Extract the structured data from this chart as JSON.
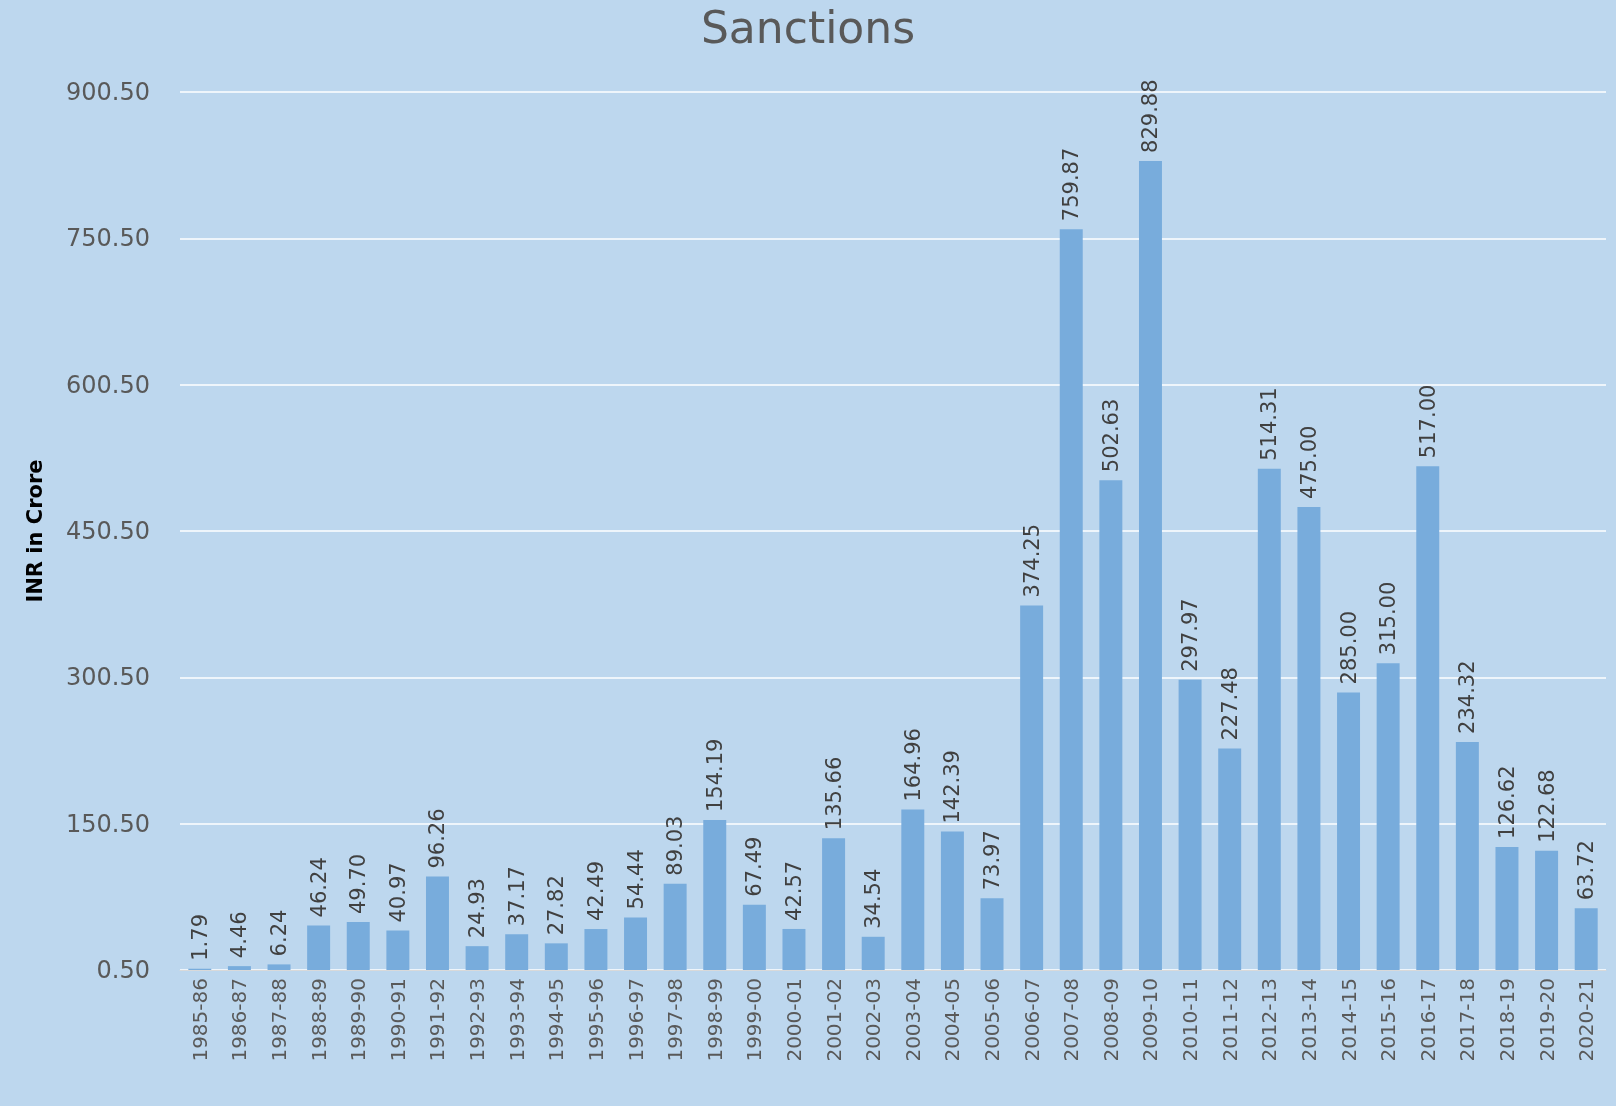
{
  "chart_data": {
    "type": "bar",
    "title": "Sanctions",
    "ylabel": "INR in Crore",
    "categories": [
      "1985-86",
      "1986-87",
      "1987-88",
      "1988-89",
      "1989-90",
      "1990-91",
      "1991-92",
      "1992-93",
      "1993-94",
      "1994-95",
      "1995-96",
      "1996-97",
      "1997-98",
      "1998-99",
      "1999-00",
      "2000-01",
      "2001-02",
      "2002-03",
      "2003-04",
      "2004-05",
      "2005-06",
      "2006-07",
      "2007-08",
      "2008-09",
      "2009-10",
      "2010-11",
      "2011-12",
      "2012-13",
      "2013-14",
      "2014-15",
      "2015-16",
      "2016-17",
      "2017-18",
      "2018-19",
      "2019-20",
      "2020-21"
    ],
    "values": [
      1.79,
      4.46,
      6.24,
      46.24,
      49.7,
      40.97,
      96.26,
      24.93,
      37.17,
      27.82,
      42.49,
      54.44,
      89.03,
      154.19,
      67.49,
      42.57,
      135.66,
      34.54,
      164.96,
      142.39,
      73.97,
      374.25,
      759.87,
      502.63,
      829.88,
      297.97,
      227.48,
      514.31,
      475.0,
      285.0,
      315.0,
      517.0,
      234.32,
      126.62,
      122.68,
      63.72
    ],
    "value_labels": [
      "1.79",
      "4.46",
      "6.24",
      "46.24",
      "49.70",
      "40.97",
      "96.26",
      "24.93",
      "37.17",
      "27.82",
      "42.49",
      "54.44",
      "89.03",
      "154.19",
      "67.49",
      "42.57",
      "135.66",
      "34.54",
      "164.96",
      "142.39",
      "73.97",
      "374.25",
      "759.87",
      "502.63",
      "829.88",
      "297.97",
      "227.48",
      "514.31",
      "475.00",
      "285.00",
      "315.00",
      "517.00",
      "234.32",
      "126.62",
      "122.68",
      "63.72"
    ],
    "color": "#78acdc",
    "ylim": [
      0.5,
      900.5
    ],
    "yticks": [
      {
        "value": 0.5,
        "label": "0.50"
      },
      {
        "value": 150.5,
        "label": "150.50"
      },
      {
        "value": 300.5,
        "label": "300.50"
      },
      {
        "value": 450.5,
        "label": "450.50"
      },
      {
        "value": 600.5,
        "label": "600.50"
      },
      {
        "value": 750.5,
        "label": "750.50"
      },
      {
        "value": 900.5,
        "label": "900.50"
      }
    ],
    "grid": "y"
  }
}
